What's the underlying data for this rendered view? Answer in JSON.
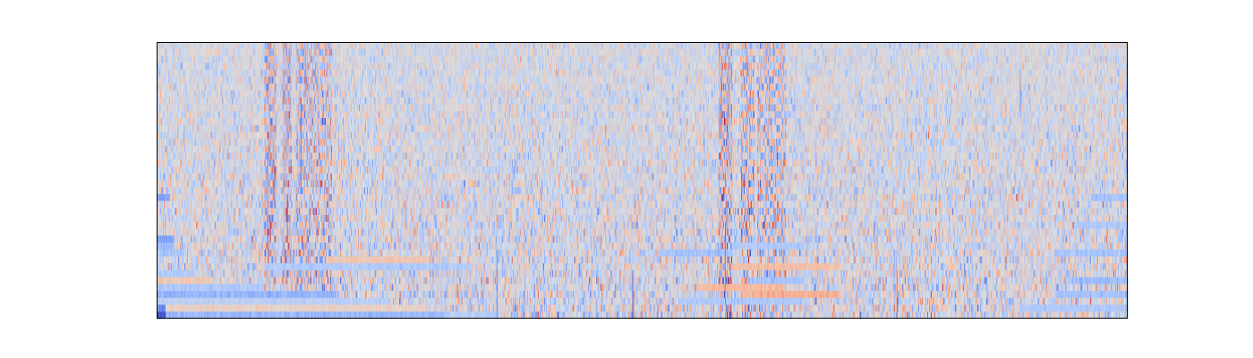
{
  "chart_data": {
    "type": "heatmap",
    "title": "",
    "xlabel": "",
    "ylabel": "",
    "show_ticks": false,
    "grid": false,
    "legend": "none",
    "colormap": "coolwarm",
    "colormap_stops": [
      "#3b4cc0",
      "#6f92f3",
      "#aac7fd",
      "#dddddd",
      "#f7b89c",
      "#e7745b",
      "#b40426"
    ],
    "value_range": [
      -1,
      1
    ],
    "rows": 40,
    "cols": 1080,
    "row_index_direction": "row 0 at top",
    "generation_seed": 20240511,
    "noise": {
      "sigma_top_row": 0.28,
      "sigma_bottom_row": 0.5,
      "blue_bias": -0.06
    },
    "column_bands": [
      {
        "col_start": 120,
        "col_end": 133,
        "pattern": "alternating",
        "amplitude": 0.55
      },
      {
        "col_start": 140,
        "col_end": 150,
        "pattern": "alternating",
        "amplitude": 0.5
      },
      {
        "col_start": 155,
        "col_end": 195,
        "pattern": "alternating",
        "amplitude": 0.45
      },
      {
        "col_start": 625,
        "col_end": 640,
        "pattern": "alternating",
        "amplitude": 0.55
      },
      {
        "col_start": 650,
        "col_end": 665,
        "pattern": "alternating",
        "amplitude": 0.5
      },
      {
        "col_start": 668,
        "col_end": 700,
        "pattern": "alternating",
        "amplitude": 0.45
      }
    ],
    "horizontal_streaks": [
      {
        "row": 39,
        "col_start": 0,
        "col_end": 10,
        "value": -0.95
      },
      {
        "row": 39,
        "col_start": 10,
        "col_end": 320,
        "value": -0.42
      },
      {
        "row": 39,
        "col_start": 320,
        "col_end": 380,
        "value": -0.25
      },
      {
        "row": 38,
        "col_start": 0,
        "col_end": 10,
        "value": -0.7
      },
      {
        "row": 38,
        "col_start": 10,
        "col_end": 300,
        "value": 0.12
      },
      {
        "row": 37,
        "col_start": 0,
        "col_end": 260,
        "value": -0.22
      },
      {
        "row": 36,
        "col_start": 0,
        "col_end": 200,
        "value": -0.45
      },
      {
        "row": 35,
        "col_start": 0,
        "col_end": 120,
        "value": -0.3
      },
      {
        "row": 34,
        "col_start": 0,
        "col_end": 60,
        "value": 0.2
      },
      {
        "row": 33,
        "col_start": 0,
        "col_end": 40,
        "value": -0.3
      },
      {
        "row": 32,
        "col_start": 120,
        "col_end": 350,
        "value": -0.28
      },
      {
        "row": 31,
        "col_start": 190,
        "col_end": 300,
        "value": 0.22
      },
      {
        "row": 30,
        "col_start": 0,
        "col_end": 30,
        "value": -0.35
      },
      {
        "row": 29,
        "col_start": 0,
        "col_end": 20,
        "value": -0.4
      },
      {
        "row": 28,
        "col_start": 0,
        "col_end": 20,
        "value": -0.55
      },
      {
        "row": 22,
        "col_start": 0,
        "col_end": 15,
        "value": -0.55
      },
      {
        "row": 37,
        "col_start": 580,
        "col_end": 720,
        "value": -0.3
      },
      {
        "row": 36,
        "col_start": 650,
        "col_end": 760,
        "value": 0.38
      },
      {
        "row": 35,
        "col_start": 600,
        "col_end": 700,
        "value": 0.32
      },
      {
        "row": 34,
        "col_start": 660,
        "col_end": 720,
        "value": -0.35
      },
      {
        "row": 32,
        "col_start": 640,
        "col_end": 760,
        "value": 0.28
      },
      {
        "row": 30,
        "col_start": 560,
        "col_end": 640,
        "value": -0.35
      },
      {
        "row": 29,
        "col_start": 640,
        "col_end": 720,
        "value": -0.3
      },
      {
        "row": 38,
        "col_start": 960,
        "col_end": 1080,
        "value": -0.3
      },
      {
        "row": 36,
        "col_start": 1000,
        "col_end": 1080,
        "value": -0.35
      },
      {
        "row": 34,
        "col_start": 1020,
        "col_end": 1080,
        "value": -0.4
      },
      {
        "row": 30,
        "col_start": 1000,
        "col_end": 1080,
        "value": -0.35
      },
      {
        "row": 26,
        "col_start": 1020,
        "col_end": 1080,
        "value": -0.3
      },
      {
        "row": 22,
        "col_start": 1040,
        "col_end": 1080,
        "value": -0.35
      }
    ],
    "vertical_lines": [
      {
        "col": 123,
        "row_start": 16,
        "row_end": 28,
        "value": -0.7
      },
      {
        "col": 126,
        "row_start": 26,
        "row_end": 29,
        "value": 0.95
      },
      {
        "col": 145,
        "row_start": 24,
        "row_end": 29,
        "value": 0.7
      },
      {
        "col": 160,
        "row_start": 8,
        "row_end": 22,
        "value": -0.75
      },
      {
        "col": 165,
        "row_start": 2,
        "row_end": 8,
        "value": -0.6
      },
      {
        "col": 378,
        "row_start": 30,
        "row_end": 40,
        "value": -0.7
      },
      {
        "col": 529,
        "row_start": 33,
        "row_end": 40,
        "value": -0.8
      },
      {
        "col": 530,
        "row_start": 36,
        "row_end": 40,
        "value": 0.6
      },
      {
        "col": 628,
        "row_start": 2,
        "row_end": 12,
        "value": 0.6
      },
      {
        "col": 632,
        "row_start": 26,
        "row_end": 38,
        "value": -0.7
      },
      {
        "col": 650,
        "row_start": 18,
        "row_end": 22,
        "value": -0.7
      },
      {
        "col": 960,
        "row_start": 4,
        "row_end": 10,
        "value": -0.6
      },
      {
        "col": 823,
        "row_start": 33,
        "row_end": 40,
        "value": 0.7
      },
      {
        "col": 820,
        "row_start": 30,
        "row_end": 40,
        "value": -0.45
      },
      {
        "col": 1080,
        "row_start": 34,
        "row_end": 40,
        "value": -0.7
      }
    ],
    "hot_spots": [
      {
        "row": 22,
        "col": 956,
        "value": 0.9
      },
      {
        "row": 13,
        "col": 858,
        "value": 0.7
      },
      {
        "row": 27,
        "col": 124,
        "value": 1.0
      },
      {
        "row": 25,
        "col": 125,
        "value": 0.95
      },
      {
        "row": 23,
        "col": 145,
        "value": 0.85
      },
      {
        "row": 6,
        "col": 628,
        "value": 0.85
      },
      {
        "row": 29,
        "col": 146,
        "value": 0.8
      },
      {
        "row": 38,
        "col": 820,
        "value": 0.75
      }
    ]
  }
}
